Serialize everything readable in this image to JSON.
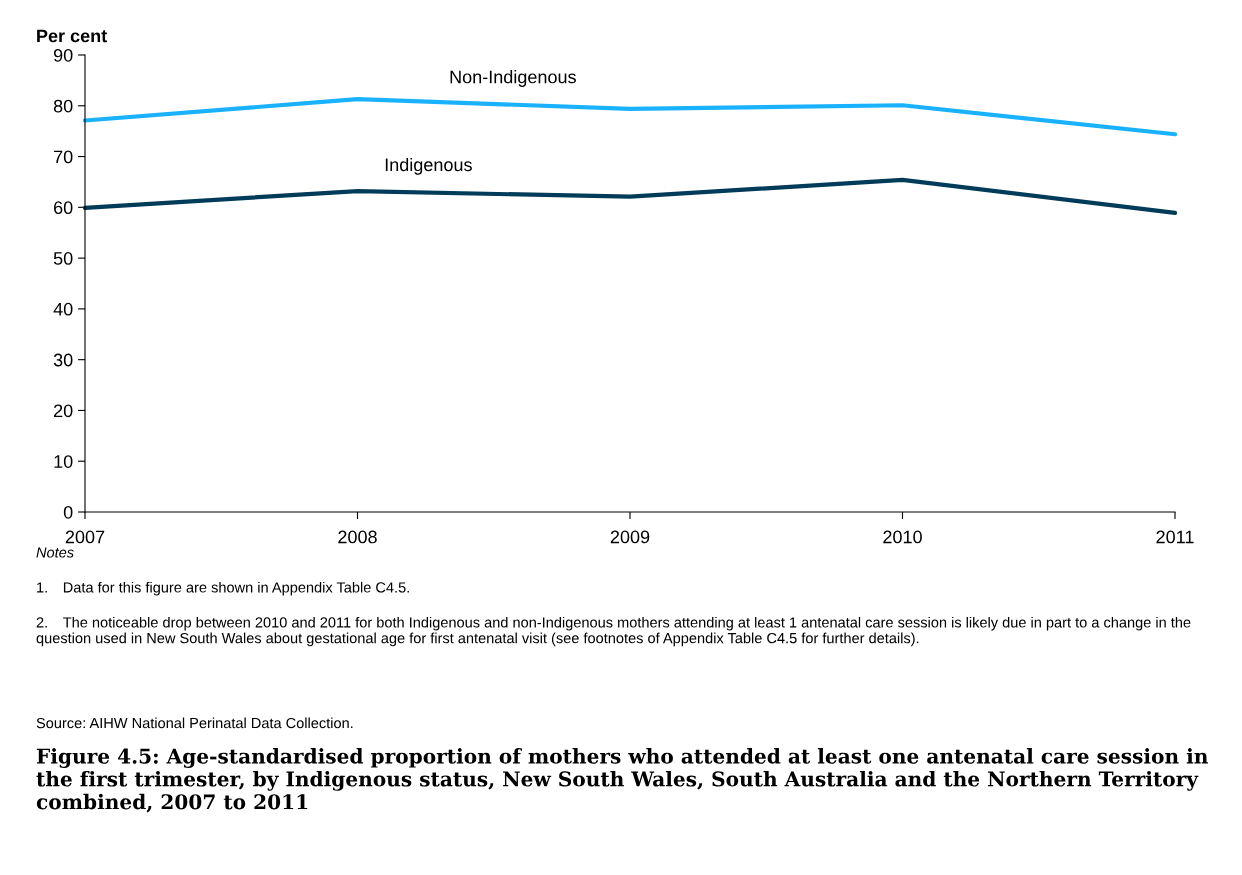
{
  "chart_data": {
    "type": "line",
    "title": "Figure 4.5: Age-standardised proportion of mothers who attended at least one antenatal care session in the first trimester, by Indigenous status, New South Wales, South Australia and the Northern Territory combined, 2007 to 2011",
    "ylabel": "Per cent",
    "categories": [
      "2007",
      "2008",
      "2009",
      "2010",
      "2011"
    ],
    "series": [
      {
        "name": "Non-Indigenous",
        "color": "#1ab2ff",
        "values": [
          77.1,
          81.3,
          79.4,
          80.1,
          74.4
        ]
      },
      {
        "name": "Indigenous",
        "color": "#003c5a",
        "values": [
          59.9,
          63.2,
          62.1,
          65.4,
          58.9
        ]
      }
    ],
    "ylim": [
      0,
      90
    ],
    "yticks": [
      0,
      10,
      20,
      30,
      40,
      50,
      60,
      70,
      80,
      90
    ],
    "annotations": [
      "Notes",
      "1. Data for this figure are shown in Appendix Table C4.5.",
      "2. The noticeable drop between 2010 and 2011 for both Indigenous and non-Indigenous mothers attending at least 1 antenatal care session is likely due in part to a change in the question used in New South Wales about gestational age for first antenatal visit (see footnotes of Appendix Table C4.5 for further details).",
      "Source: AIHW National Perinatal Data Collection."
    ],
    "marker": "none",
    "line_style": "solid"
  }
}
